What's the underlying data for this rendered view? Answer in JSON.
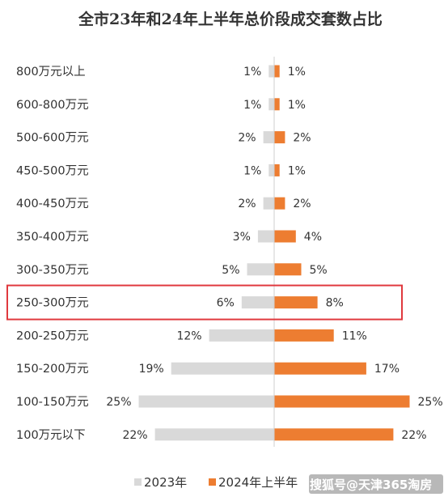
{
  "chart_data": {
    "type": "bar",
    "orientation": "horizontal-diverging",
    "title": "全市23年和24年上半年总价段成交套数占比",
    "categories": [
      "800万元以上",
      "600-800万元",
      "500-600万元",
      "450-500万元",
      "400-450万元",
      "350-400万元",
      "300-350万元",
      "250-300万元",
      "200-250万元",
      "150-200万元",
      "100-150万元",
      "100万元以下"
    ],
    "series": [
      {
        "name": "2023年",
        "color": "#d9d9d9",
        "values": [
          1,
          1,
          2,
          1,
          2,
          3,
          5,
          6,
          12,
          19,
          25,
          22
        ],
        "labels": [
          "1%",
          "1%",
          "2%",
          "1%",
          "2%",
          "3%",
          "5%",
          "6%",
          "12%",
          "19%",
          "25%",
          "22%"
        ]
      },
      {
        "name": "2024年上半年",
        "color": "#ed7d31",
        "values": [
          1,
          1,
          2,
          1,
          2,
          4,
          5,
          8,
          11,
          17,
          25,
          22
        ],
        "labels": [
          "1%",
          "1%",
          "2%",
          "1%",
          "2%",
          "4%",
          "5%",
          "8%",
          "11%",
          "17%",
          "25%",
          "22%"
        ]
      }
    ],
    "unit": "%",
    "legend_position": "bottom",
    "highlighted_category": "250-300万元",
    "highlight_color": "#e0393e",
    "grid": false
  },
  "watermark": "搜狐号@天津365淘房"
}
